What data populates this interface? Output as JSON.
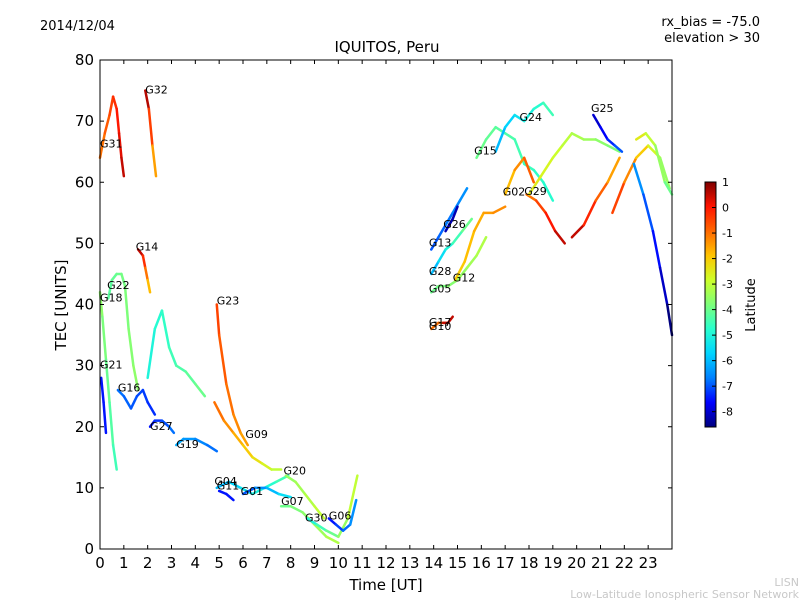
{
  "date": "2014/12/04",
  "rx_bias": "rx_bias = -75.0",
  "elevation": "elevation > 30",
  "footer_line1": "LISN",
  "footer_line2": "Low-Latitude Ionospheric Sensor Network",
  "colors": {
    "cmap": [
      "#00007f",
      "#0000ff",
      "#0080ff",
      "#00d4ff",
      "#29ffce",
      "#7dff7a",
      "#ceff29",
      "#ffc400",
      "#ff6800",
      "#ff1300",
      "#7f0000"
    ]
  },
  "chart_data": {
    "type": "line",
    "title": "IQUITOS, Peru",
    "xlabel": "Time [UT]",
    "ylabel": "TEC [UNITS]",
    "xlim": [
      0,
      24
    ],
    "ylim": [
      0,
      80
    ],
    "xticks": [
      "0",
      "1",
      "2",
      "3",
      "4",
      "5",
      "6",
      "7",
      "8",
      "9",
      "10",
      "11",
      "12",
      "13",
      "14",
      "15",
      "16",
      "17",
      "18",
      "19",
      "20",
      "21",
      "22",
      "23"
    ],
    "yticks": [
      "0",
      "10",
      "20",
      "30",
      "40",
      "50",
      "60",
      "70",
      "80"
    ],
    "colorbar": {
      "label": "Latitude",
      "range": [
        -8.6,
        1.0
      ],
      "ticks": [
        "1",
        "0",
        "-1",
        "-2",
        "-3",
        "-4",
        "-5",
        "-6",
        "-7",
        "-8"
      ]
    },
    "satellite_labels": [
      {
        "name": "G31",
        "x": 0.0,
        "y": 65.7
      },
      {
        "name": "G32",
        "x": 1.9,
        "y": 74.5
      },
      {
        "name": "G14",
        "x": 1.5,
        "y": 48.8
      },
      {
        "name": "G22",
        "x": 0.3,
        "y": 42.5
      },
      {
        "name": "G18",
        "x": 0.0,
        "y": 40.5
      },
      {
        "name": "G21",
        "x": 0.0,
        "y": 29.5
      },
      {
        "name": "G16",
        "x": 0.75,
        "y": 25.8
      },
      {
        "name": "G27",
        "x": 2.1,
        "y": 19.5
      },
      {
        "name": "G19",
        "x": 3.2,
        "y": 16.5
      },
      {
        "name": "G23",
        "x": 4.9,
        "y": 40.0
      },
      {
        "name": "G09",
        "x": 6.1,
        "y": 18.2
      },
      {
        "name": "G04",
        "x": 4.8,
        "y": 10.5
      },
      {
        "name": "G11",
        "x": 4.9,
        "y": 9.7
      },
      {
        "name": "G01",
        "x": 5.9,
        "y": 8.8
      },
      {
        "name": "G20",
        "x": 7.7,
        "y": 12.2
      },
      {
        "name": "G07",
        "x": 7.6,
        "y": 7.2
      },
      {
        "name": "G30",
        "x": 8.6,
        "y": 4.5
      },
      {
        "name": "G06",
        "x": 9.6,
        "y": 4.8
      },
      {
        "name": "G13",
        "x": 13.8,
        "y": 49.5
      },
      {
        "name": "G26",
        "x": 14.4,
        "y": 52.5
      },
      {
        "name": "G15",
        "x": 15.7,
        "y": 64.5
      },
      {
        "name": "G24",
        "x": 17.6,
        "y": 70.0
      },
      {
        "name": "G25",
        "x": 20.6,
        "y": 71.5
      },
      {
        "name": "G28",
        "x": 13.8,
        "y": 44.8
      },
      {
        "name": "G05",
        "x": 13.8,
        "y": 42.0
      },
      {
        "name": "G12",
        "x": 14.8,
        "y": 43.8
      },
      {
        "name": "G02",
        "x": 16.9,
        "y": 57.8
      },
      {
        "name": "G29",
        "x": 17.8,
        "y": 57.9
      },
      {
        "name": "G17",
        "x": 13.8,
        "y": 36.5
      },
      {
        "name": "G10",
        "x": 13.8,
        "y": 35.8
      }
    ],
    "series": [
      {
        "name": "G31",
        "lat": [
          -1.0,
          -0.3,
          0.5
        ],
        "x": [
          0.0,
          0.2,
          0.4,
          0.55,
          0.7,
          0.8,
          0.9,
          1.0
        ],
        "y": [
          64,
          68,
          71,
          74,
          72,
          68,
          64,
          61
        ]
      },
      {
        "name": "G32",
        "lat": [
          0.6,
          -1.5
        ],
        "x": [
          1.9,
          2.05,
          2.2,
          2.35
        ],
        "y": [
          75,
          72,
          66,
          61
        ]
      },
      {
        "name": "G14",
        "lat": [
          0.5,
          -1.8
        ],
        "x": [
          1.6,
          1.8,
          1.9,
          2.0,
          2.1
        ],
        "y": [
          49,
          48,
          46,
          44,
          42
        ]
      },
      {
        "name": "G22",
        "lat": [
          -4.2,
          -3.6
        ],
        "x": [
          0.35,
          0.5,
          0.7,
          0.9,
          1.05,
          1.2,
          1.4,
          1.6
        ],
        "y": [
          41,
          44,
          45,
          45,
          43,
          36,
          30,
          26
        ]
      },
      {
        "name": "G18",
        "lat": [
          -3.6,
          -4.5
        ],
        "x": [
          0.0,
          0.1,
          0.25,
          0.4,
          0.55,
          0.7
        ],
        "y": [
          42,
          38,
          31,
          24,
          17,
          13
        ]
      },
      {
        "name": "G21",
        "lat": [
          -7.5
        ],
        "x": [
          0.05,
          0.15,
          0.25
        ],
        "y": [
          28,
          24,
          19
        ]
      },
      {
        "name": "G16",
        "lat": [
          -6.8,
          -7.3
        ],
        "x": [
          0.75,
          1.0,
          1.3,
          1.55,
          1.8,
          2.0,
          2.3
        ],
        "y": [
          26,
          25,
          23,
          25,
          26,
          24,
          22
        ]
      },
      {
        "name": "G27",
        "lat": [
          -7.5,
          -6.8
        ],
        "x": [
          2.1,
          2.3,
          2.6,
          2.9,
          3.1
        ],
        "y": [
          20,
          21,
          21,
          20,
          19
        ]
      },
      {
        "name": "G19",
        "lat": [
          -6.2,
          -6.8
        ],
        "x": [
          3.2,
          3.5,
          4.0,
          4.5,
          4.9
        ],
        "y": [
          17,
          18,
          18,
          17,
          16
        ]
      },
      {
        "name": "G13x",
        "lat": [
          -5.0,
          -4.0
        ],
        "x": [
          2.0,
          2.3,
          2.6,
          2.9,
          3.2,
          3.6,
          4.0,
          4.4
        ],
        "y": [
          28,
          36,
          39,
          33,
          30,
          29,
          27,
          25
        ]
      },
      {
        "name": "G09",
        "lat": [
          -1.0,
          -3.0
        ],
        "x": [
          4.8,
          5.2,
          5.6,
          6.0,
          6.4,
          6.8,
          7.2,
          7.6
        ],
        "y": [
          24,
          21,
          19,
          17,
          15,
          14,
          13,
          13
        ]
      },
      {
        "name": "G23",
        "lat": [
          -0.5,
          -1.5
        ],
        "x": [
          4.9,
          5.0,
          5.3,
          5.6,
          5.9,
          6.2
        ],
        "y": [
          40,
          35,
          27,
          22,
          19,
          17
        ]
      },
      {
        "name": "G04",
        "lat": [
          -6.0,
          -4.5
        ],
        "x": [
          4.9,
          5.4,
          5.9,
          6.4,
          6.9,
          7.4,
          7.9
        ],
        "y": [
          10,
          11,
          10,
          9,
          10,
          11,
          12
        ]
      },
      {
        "name": "G11",
        "lat": [
          -7.5
        ],
        "x": [
          5.0,
          5.3,
          5.6
        ],
        "y": [
          9.5,
          9,
          8
        ]
      },
      {
        "name": "G01",
        "lat": [
          -7.0,
          -5.5
        ],
        "x": [
          6.0,
          6.5,
          7.0,
          7.5,
          8.0
        ],
        "y": [
          9,
          10,
          10,
          9,
          8.5
        ]
      },
      {
        "name": "G20",
        "lat": [
          -3.5,
          -3.0
        ],
        "x": [
          7.8,
          8.2,
          8.6,
          9.0,
          9.4
        ],
        "y": [
          12,
          11,
          9,
          7,
          5
        ]
      },
      {
        "name": "G07",
        "lat": [
          -4.0,
          -3.2
        ],
        "x": [
          7.6,
          8.0,
          8.5,
          9.0,
          9.5,
          10.0
        ],
        "y": [
          7,
          7,
          6,
          4,
          2,
          1
        ]
      },
      {
        "name": "G30",
        "lat": [
          -5.0,
          -3.0
        ],
        "x": [
          8.7,
          9.1,
          9.5,
          10.0,
          10.4,
          10.8
        ],
        "y": [
          5,
          4,
          3,
          2,
          5,
          12
        ]
      },
      {
        "name": "G06",
        "lat": [
          -7.5,
          -6.5
        ],
        "x": [
          9.6,
          9.9,
          10.2,
          10.5,
          10.75
        ],
        "y": [
          5,
          4,
          3,
          4,
          8
        ]
      },
      {
        "name": "G13",
        "lat": [
          -7.0,
          -6.5
        ],
        "x": [
          13.9,
          14.2,
          14.5,
          14.8,
          15.1,
          15.4
        ],
        "y": [
          49,
          51,
          53,
          55,
          57,
          59
        ]
      },
      {
        "name": "G26",
        "lat": [
          -8.2
        ],
        "x": [
          14.5,
          14.8,
          15.0
        ],
        "y": [
          52,
          54,
          56
        ]
      },
      {
        "name": "G15",
        "lat": [
          -4.0,
          -4.8
        ],
        "x": [
          15.8,
          16.2,
          16.6,
          17.0,
          17.4,
          17.8,
          18.2,
          18.6,
          19.0
        ],
        "y": [
          64,
          67,
          69,
          68,
          67,
          63,
          62,
          60,
          57
        ]
      },
      {
        "name": "G24",
        "lat": [
          -6.0,
          -4.5
        ],
        "x": [
          16.6,
          17.0,
          17.4,
          17.8,
          18.2,
          18.6,
          19.0
        ],
        "y": [
          65,
          69,
          71,
          70,
          72,
          73,
          71
        ]
      },
      {
        "name": "G28",
        "lat": [
          -6.0,
          -4.0
        ],
        "x": [
          13.9,
          14.2,
          14.5,
          14.8,
          15.2,
          15.6
        ],
        "y": [
          45,
          47,
          49,
          50,
          52,
          54
        ]
      },
      {
        "name": "G05",
        "lat": [
          -4.0,
          -3.2
        ],
        "x": [
          13.9,
          14.2,
          14.6,
          15.0,
          15.4,
          15.8,
          16.2
        ],
        "y": [
          42,
          43,
          43,
          44,
          46,
          48,
          51
        ]
      },
      {
        "name": "G12",
        "lat": [
          -2.0,
          -1.3
        ],
        "x": [
          14.9,
          15.3,
          15.7,
          16.1,
          16.5,
          17.0
        ],
        "y": [
          44,
          47,
          52,
          55,
          55,
          56
        ]
      },
      {
        "name": "G02",
        "lat": [
          -1.8,
          -0.8
        ],
        "x": [
          17.0,
          17.4,
          17.8,
          18.2
        ],
        "y": [
          58,
          62,
          64,
          60
        ]
      },
      {
        "name": "G29",
        "lat": [
          -1.0,
          0.5
        ],
        "x": [
          17.9,
          18.3,
          18.7,
          19.1,
          19.5
        ],
        "y": [
          58,
          57,
          55,
          52,
          50
        ]
      },
      {
        "name": "G03",
        "lat": [
          -2.5,
          -3.8
        ],
        "x": [
          18.0,
          18.5,
          19.0,
          19.4,
          19.8,
          20.3,
          20.8,
          21.3,
          21.8
        ],
        "y": [
          58,
          61,
          64,
          66,
          68,
          67,
          67,
          66,
          65
        ]
      },
      {
        "name": "G25",
        "lat": [
          -8.0,
          -7.0
        ],
        "x": [
          20.7,
          21.0,
          21.3,
          21.6,
          21.9
        ],
        "y": [
          71,
          69,
          67,
          66,
          65
        ]
      },
      {
        "name": "G17",
        "lat": [
          -1.0
        ],
        "x": [
          13.9,
          14.2,
          14.5
        ],
        "y": [
          36,
          37,
          37
        ]
      },
      {
        "name": "G10",
        "lat": [
          0.5
        ],
        "x": [
          14.4,
          14.6,
          14.8
        ],
        "y": [
          37,
          37,
          38
        ]
      },
      {
        "name": "G21b",
        "lat": [
          0.5,
          -1.5
        ],
        "x": [
          19.8,
          20.3,
          20.8,
          21.3,
          21.8
        ],
        "y": [
          51,
          53,
          57,
          60,
          64
        ]
      },
      {
        "name": "G16b",
        "lat": [
          -0.5,
          -3.5
        ],
        "x": [
          21.5,
          22.0,
          22.5,
          23.0,
          23.5,
          23.9
        ],
        "y": [
          55,
          60,
          64,
          66,
          64,
          59
        ]
      },
      {
        "name": "G18b",
        "lat": [
          -6.5,
          -8.6
        ],
        "x": [
          22.4,
          22.8,
          23.2,
          23.5,
          23.8,
          24.0
        ],
        "y": [
          63,
          58,
          52,
          46,
          40,
          35
        ]
      },
      {
        "name": "G14b",
        "lat": [
          -2.5,
          -4.0
        ],
        "x": [
          22.5,
          22.9,
          23.3,
          23.7,
          24.0
        ],
        "y": [
          67,
          68,
          66,
          60,
          58
        ]
      }
    ]
  }
}
